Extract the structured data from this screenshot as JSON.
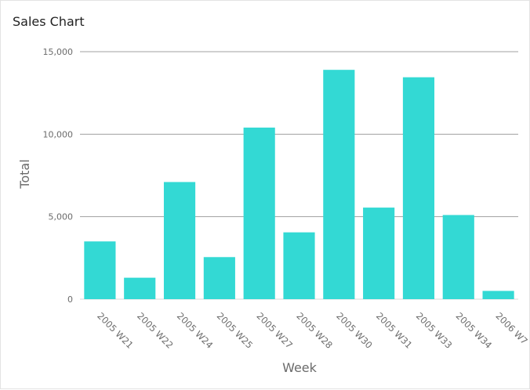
{
  "chart_data": {
    "type": "bar",
    "title": "Sales Chart",
    "xlabel": "Week",
    "ylabel": "Total",
    "categories": [
      "2005 W21",
      "2005 W22",
      "2005 W24",
      "2005 W25",
      "2005 W27",
      "2005 W28",
      "2005 W30",
      "2005 W31",
      "2005 W33",
      "2005 W34",
      "2006 W7"
    ],
    "values": [
      3500,
      1300,
      7100,
      2550,
      10400,
      4050,
      13900,
      5550,
      13450,
      5100,
      500
    ],
    "ylim": [
      0,
      15000
    ],
    "yticks": [
      0,
      5000,
      10000,
      15000
    ],
    "ytick_labels": [
      "0",
      "5,000",
      "10,000",
      "15,000"
    ],
    "grid": true,
    "legend": "none",
    "colors": {
      "bar": "#33d9d4",
      "grid": "#a0a0a0",
      "text": "#6b6b6b"
    }
  }
}
